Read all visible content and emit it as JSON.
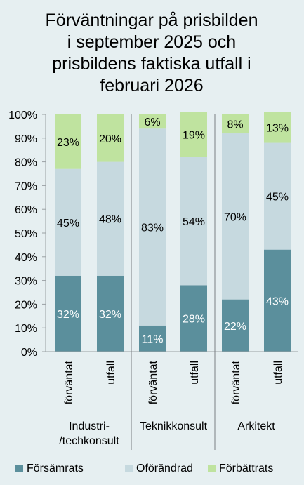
{
  "chart_data": {
    "type": "bar",
    "stacked": true,
    "title_lines": [
      "Förväntningar på prisbilden",
      "i september 2025 och",
      "prisbildens faktiska utfall i",
      "februari 2026"
    ],
    "ylim": [
      0,
      100
    ],
    "yticks": [
      "0%",
      "10%",
      "20%",
      "30%",
      "40%",
      "50%",
      "60%",
      "70%",
      "80%",
      "90%",
      "100%"
    ],
    "categories": [
      "förväntat",
      "utfall",
      "förväntat",
      "utfall",
      "förväntat",
      "utfall"
    ],
    "groups": [
      {
        "lines": [
          "Industri-",
          "/techkonsult"
        ]
      },
      {
        "lines": [
          "Teknikkonsult"
        ]
      },
      {
        "lines": [
          "Arkitekt"
        ]
      }
    ],
    "series": [
      {
        "name": "Försämrats",
        "color": "#5b8f9c",
        "label_color": "#ffffff",
        "values": [
          32,
          32,
          11,
          28,
          22,
          43
        ]
      },
      {
        "name": "Oförändrad",
        "color": "#c6d9df",
        "label_color": "#000000",
        "values": [
          45,
          48,
          83,
          54,
          70,
          45
        ]
      },
      {
        "name": "Förbättrats",
        "color": "#bfe39f",
        "label_color": "#000000",
        "values": [
          23,
          20,
          6,
          19,
          8,
          13
        ]
      }
    ],
    "data_labels": [
      [
        "32%",
        "32%",
        "11%",
        "28%",
        "22%",
        "43%"
      ],
      [
        "45%",
        "48%",
        "83%",
        "54%",
        "70%",
        "45%"
      ],
      [
        "23%",
        "20%",
        "6%",
        "19%",
        "8%",
        "13%"
      ]
    ],
    "grid": false,
    "legend_position": "bottom"
  }
}
